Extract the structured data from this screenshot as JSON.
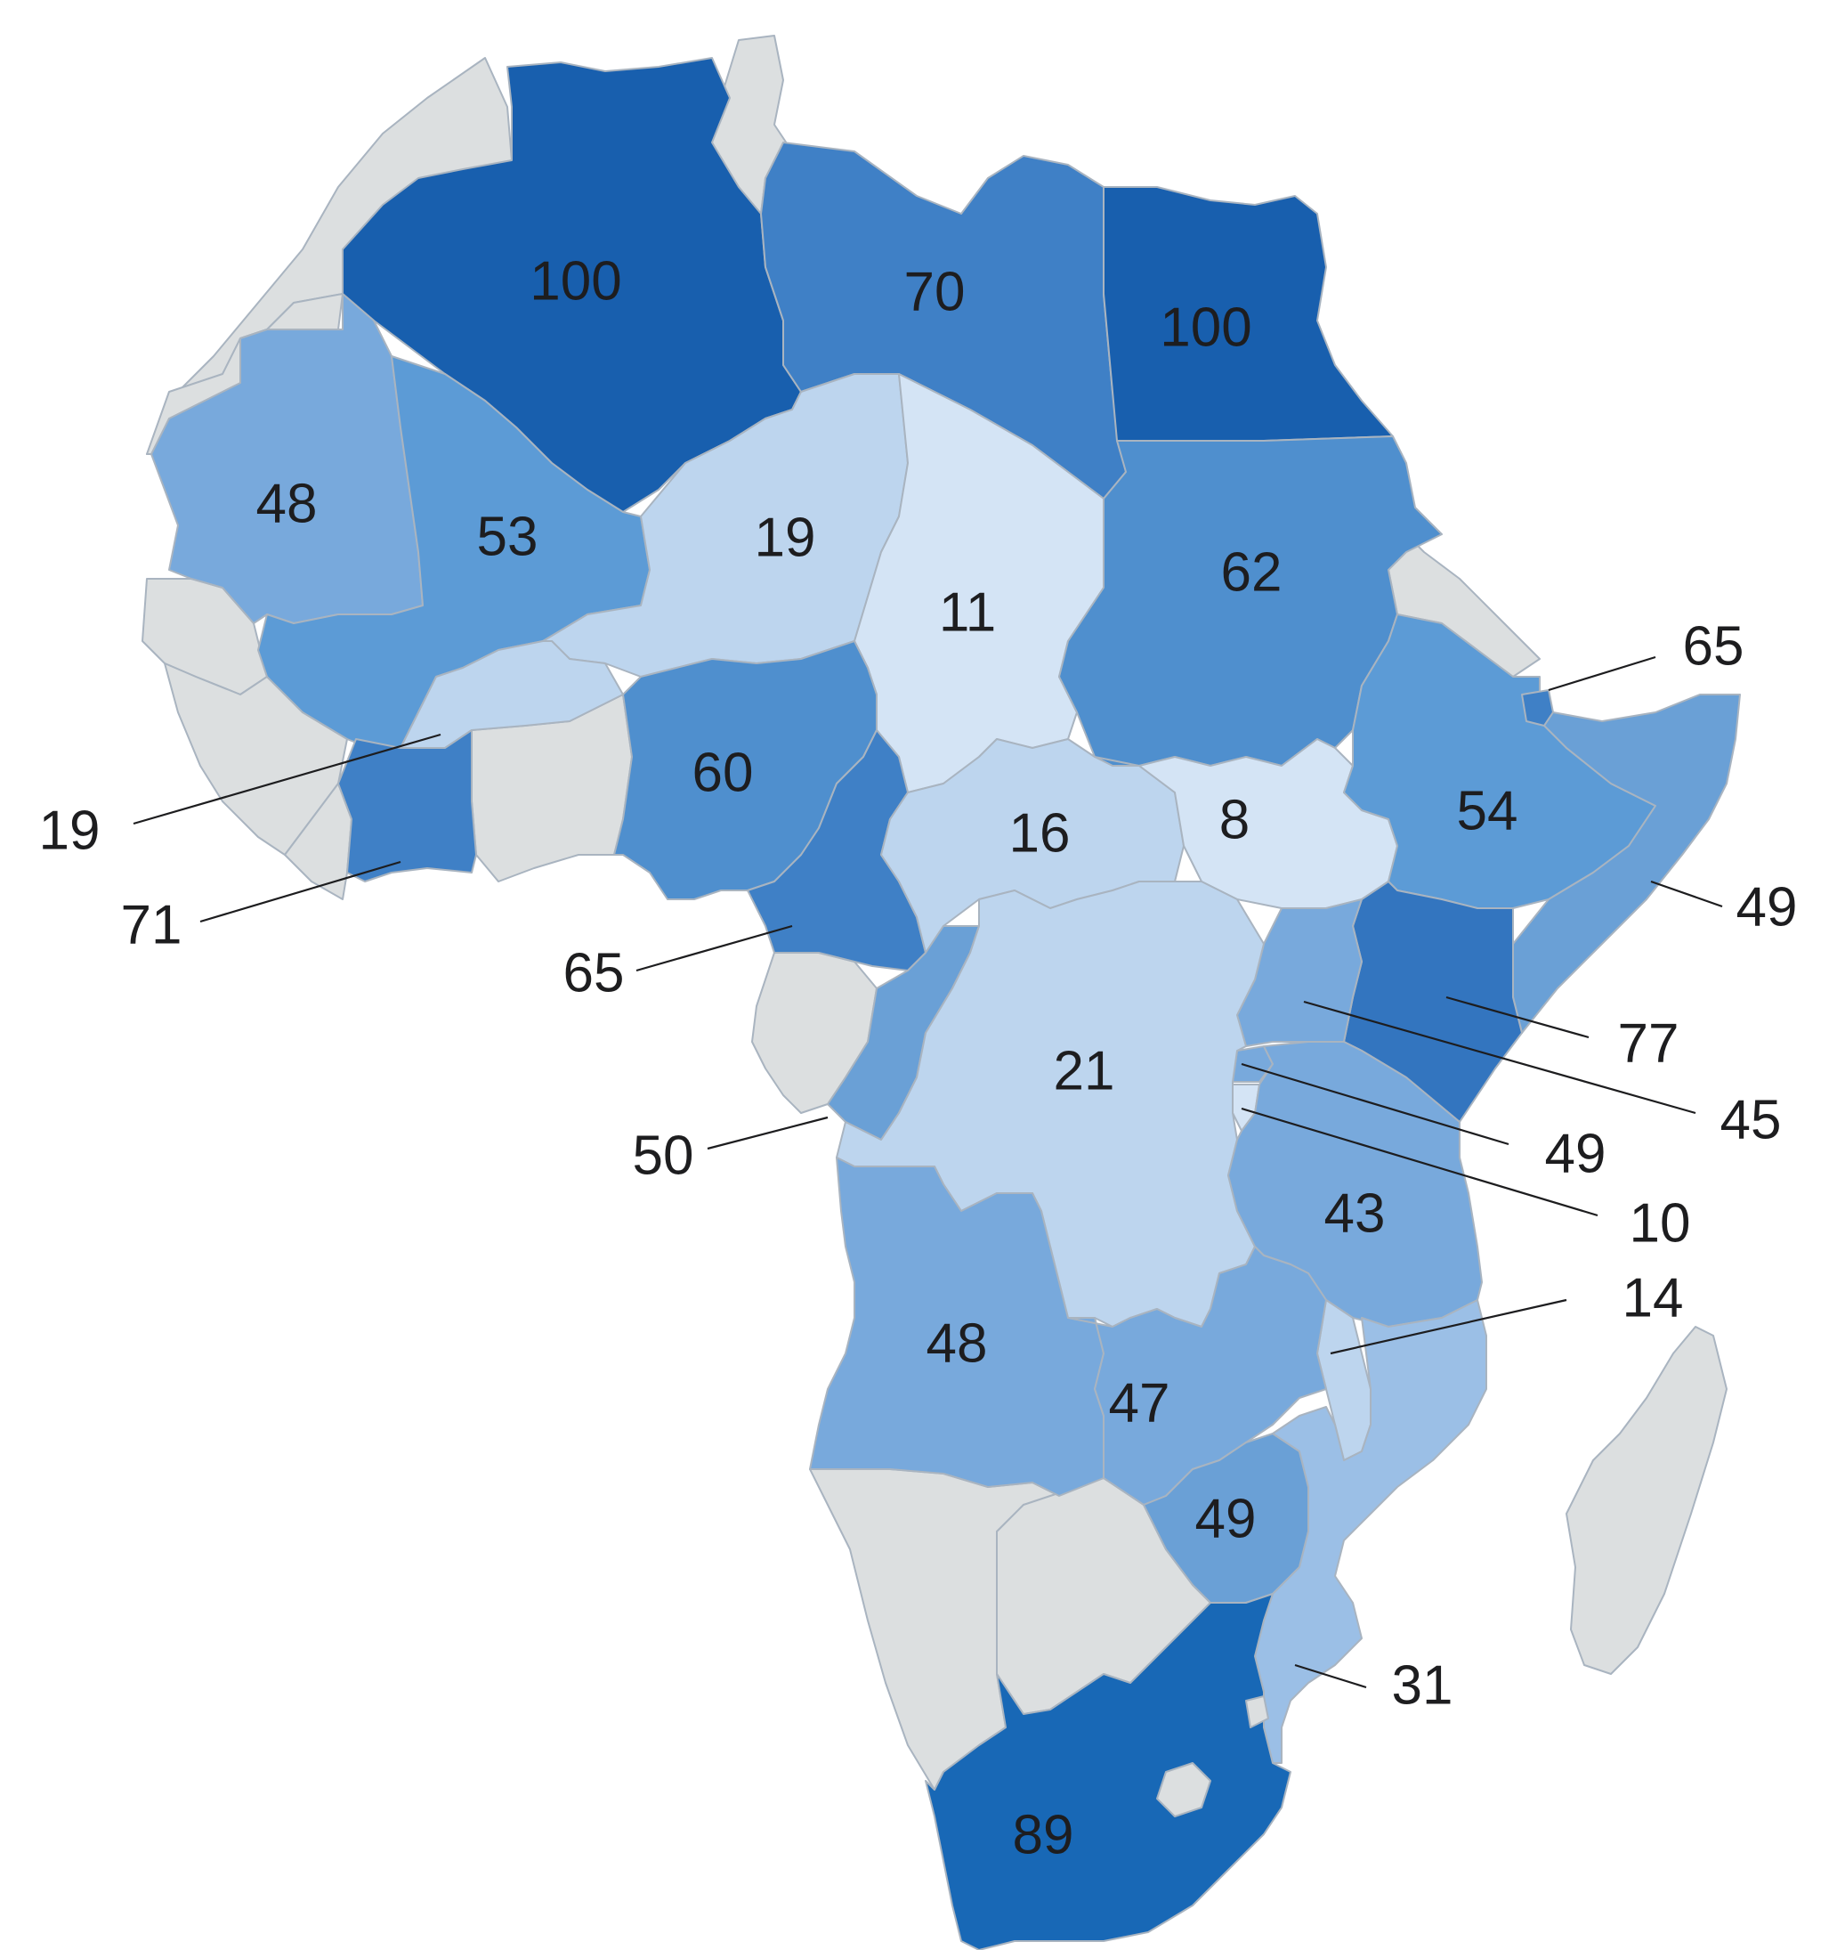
{
  "map": {
    "type": "choropleth",
    "region": "Africa",
    "no_data_color": "#dcdfe0",
    "color_scale": [
      {
        "min": 0,
        "color": "#d4e4f5"
      },
      {
        "min": 15,
        "color": "#bdd5ee"
      },
      {
        "min": 40,
        "color": "#78a9dc"
      },
      {
        "min": 52,
        "color": "#5c9bd6"
      },
      {
        "min": 58,
        "color": "#4f8fce"
      },
      {
        "min": 68,
        "color": "#3f80c6"
      },
      {
        "min": 75,
        "color": "#3375bf"
      },
      {
        "min": 85,
        "color": "#1868b6"
      },
      {
        "min": 95,
        "color": "#185fae"
      }
    ],
    "countries": [
      {
        "id": "algeria",
        "value": "100"
      },
      {
        "id": "libya",
        "value": "70"
      },
      {
        "id": "egypt",
        "value": "100"
      },
      {
        "id": "mauritania",
        "value": "48"
      },
      {
        "id": "mali",
        "value": "53"
      },
      {
        "id": "niger",
        "value": "19"
      },
      {
        "id": "chad",
        "value": "11"
      },
      {
        "id": "sudan",
        "value": "62"
      },
      {
        "id": "burkina-faso",
        "value": "19"
      },
      {
        "id": "ivory-coast",
        "value": "71"
      },
      {
        "id": "nigeria",
        "value": "60"
      },
      {
        "id": "cameroon",
        "value": "65"
      },
      {
        "id": "car",
        "value": "16"
      },
      {
        "id": "south-sudan",
        "value": "8"
      },
      {
        "id": "ethiopia",
        "value": "54"
      },
      {
        "id": "djibouti",
        "value": "65"
      },
      {
        "id": "somalia",
        "value": "49"
      },
      {
        "id": "kenya",
        "value": "77"
      },
      {
        "id": "uganda",
        "value": "45"
      },
      {
        "id": "rwanda",
        "value": "49"
      },
      {
        "id": "burundi",
        "value": "10"
      },
      {
        "id": "congo",
        "value": "50"
      },
      {
        "id": "drc",
        "value": "21"
      },
      {
        "id": "tanzania",
        "value": "43"
      },
      {
        "id": "malawi",
        "value": "14"
      },
      {
        "id": "angola",
        "value": "48"
      },
      {
        "id": "zambia",
        "value": "47"
      },
      {
        "id": "zimbabwe",
        "value": "49"
      },
      {
        "id": "mozambique",
        "value": "31"
      },
      {
        "id": "south-africa",
        "value": "89"
      }
    ],
    "no_data_countries": [
      "morocco",
      "western-sahara",
      "tunisia",
      "eritrea",
      "senegal",
      "guinea",
      "liberia",
      "ghana-togo-benin",
      "gabon",
      "namibia",
      "botswana",
      "lesotho",
      "madagascar"
    ]
  }
}
